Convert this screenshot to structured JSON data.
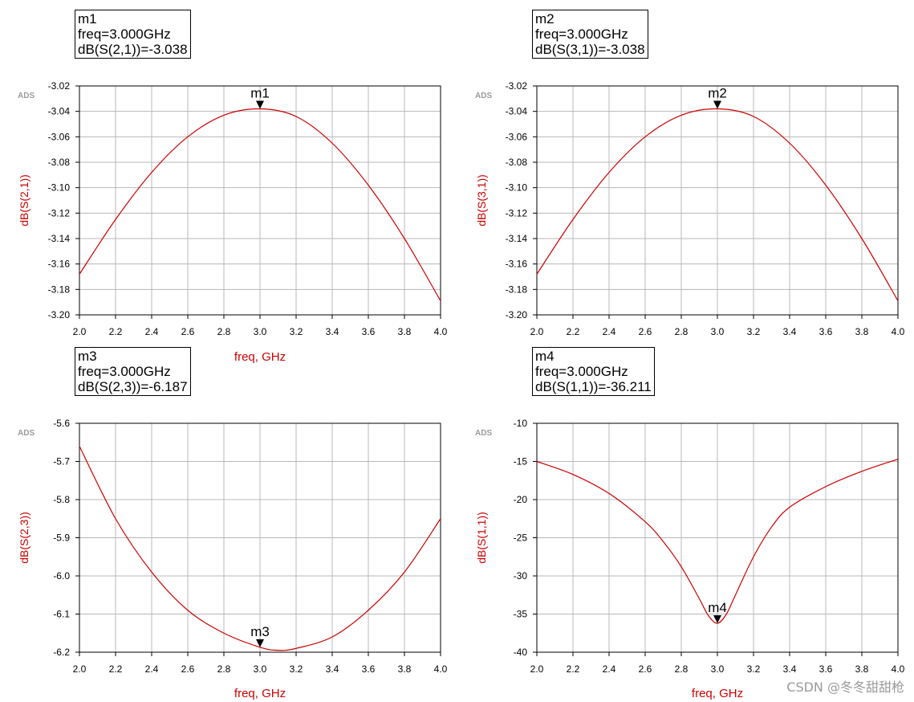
{
  "chart_data": [
    {
      "type": "line",
      "logo": "ADS",
      "xlabel": "freq, GHz",
      "ylabel": "dB(S(2,1))",
      "xlim": [
        2.0,
        4.0
      ],
      "ylim": [
        -3.2,
        -3.02
      ],
      "x_ticks": [
        "2.0",
        "2.2",
        "2.4",
        "2.6",
        "2.8",
        "3.0",
        "3.2",
        "3.4",
        "3.6",
        "3.8",
        "4.0"
      ],
      "y_ticks": [
        "-3.02",
        "-3.04",
        "-3.06",
        "-3.08",
        "-3.10",
        "-3.12",
        "-3.14",
        "-3.16",
        "-3.18",
        "-3.20"
      ],
      "grid": true,
      "series": [
        {
          "color": "#cc0000",
          "x": [
            2.0,
            2.2,
            2.4,
            2.6,
            2.8,
            3.0,
            3.2,
            3.4,
            3.6,
            3.8,
            4.0
          ],
          "y": [
            -3.168,
            -3.125,
            -3.088,
            -3.06,
            -3.043,
            -3.038,
            -3.044,
            -3.065,
            -3.098,
            -3.14,
            -3.189
          ]
        }
      ],
      "marker": {
        "name": "m1",
        "x": 3.0,
        "y": -3.038,
        "lines": [
          "m1",
          "freq=3.000GHz",
          "dB(S(2,1))=-3.038"
        ]
      }
    },
    {
      "type": "line",
      "logo": "ADS",
      "xlabel": "",
      "ylabel": "dB(S(3,1))",
      "xlim": [
        2.0,
        4.0
      ],
      "ylim": [
        -3.2,
        -3.02
      ],
      "x_ticks": [
        "2.0",
        "2.2",
        "2.4",
        "2.6",
        "2.8",
        "3.0",
        "3.2",
        "3.4",
        "3.6",
        "3.8",
        "4.0"
      ],
      "y_ticks": [
        "-3.02",
        "-3.04",
        "-3.06",
        "-3.08",
        "-3.10",
        "-3.12",
        "-3.14",
        "-3.16",
        "-3.18",
        "-3.20"
      ],
      "grid": true,
      "series": [
        {
          "color": "#cc0000",
          "x": [
            2.0,
            2.2,
            2.4,
            2.6,
            2.8,
            3.0,
            3.2,
            3.4,
            3.6,
            3.8,
            4.0
          ],
          "y": [
            -3.168,
            -3.125,
            -3.088,
            -3.06,
            -3.043,
            -3.038,
            -3.044,
            -3.065,
            -3.098,
            -3.14,
            -3.189
          ]
        }
      ],
      "marker": {
        "name": "m2",
        "x": 3.0,
        "y": -3.038,
        "lines": [
          "m2",
          "freq=3.000GHz",
          "dB(S(3,1))=-3.038"
        ]
      }
    },
    {
      "type": "line",
      "logo": "ADS",
      "xlabel": "freq, GHz",
      "ylabel": "dB(S(2,3))",
      "xlim": [
        2.0,
        4.0
      ],
      "ylim": [
        -6.2,
        -5.6
      ],
      "x_ticks": [
        "2.0",
        "2.2",
        "2.4",
        "2.6",
        "2.8",
        "3.0",
        "3.2",
        "3.4",
        "3.6",
        "3.8",
        "4.0"
      ],
      "y_ticks": [
        "-5.6",
        "-5.7",
        "-5.8",
        "-5.9",
        "-6.0",
        "-6.1",
        "-6.2"
      ],
      "grid": true,
      "series": [
        {
          "color": "#cc0000",
          "x": [
            2.0,
            2.2,
            2.4,
            2.6,
            2.8,
            3.0,
            3.1,
            3.2,
            3.4,
            3.6,
            3.8,
            4.0
          ],
          "y": [
            -5.66,
            -5.85,
            -5.99,
            -6.09,
            -6.15,
            -6.187,
            -6.195,
            -6.19,
            -6.16,
            -6.09,
            -5.99,
            -5.85
          ]
        }
      ],
      "marker": {
        "name": "m3",
        "x": 3.0,
        "y": -6.187,
        "lines": [
          "m3",
          "freq=3.000GHz",
          "dB(S(2,3))=-6.187"
        ]
      }
    },
    {
      "type": "line",
      "logo": "ADS",
      "xlabel": "freq, GHz",
      "ylabel": "dB(S(1,1))",
      "xlim": [
        2.0,
        4.0
      ],
      "ylim": [
        -40,
        -10
      ],
      "x_ticks": [
        "2.0",
        "2.2",
        "2.4",
        "2.6",
        "2.8",
        "3.0",
        "3.2",
        "3.4",
        "3.6",
        "3.8",
        "4.0"
      ],
      "y_ticks": [
        "-10",
        "-15",
        "-20",
        "-25",
        "-30",
        "-35",
        "-40"
      ],
      "grid": true,
      "series": [
        {
          "color": "#cc0000",
          "x": [
            2.0,
            2.2,
            2.4,
            2.6,
            2.7,
            2.8,
            2.9,
            2.95,
            3.0,
            3.05,
            3.1,
            3.2,
            3.3,
            3.4,
            3.6,
            3.8,
            4.0
          ],
          "y": [
            -15.0,
            -16.7,
            -19.2,
            -22.9,
            -25.5,
            -28.8,
            -33.0,
            -35.2,
            -36.211,
            -35.0,
            -32.5,
            -27.5,
            -23.6,
            -21.0,
            -18.3,
            -16.3,
            -14.7
          ]
        }
      ],
      "marker": {
        "name": "m4",
        "x": 3.0,
        "y": -36.211,
        "lines": [
          "m4",
          "freq=3.000GHz",
          "dB(S(1,1))=-36.211"
        ]
      }
    }
  ],
  "watermark": "CSDN @冬冬甜甜枪"
}
